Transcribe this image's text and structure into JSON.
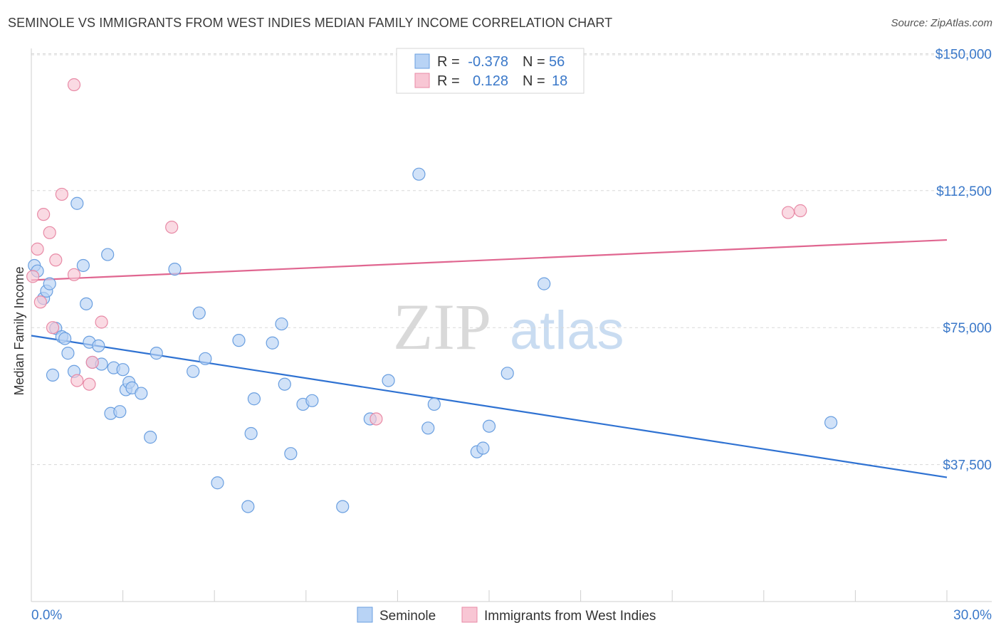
{
  "title": "SEMINOLE VS IMMIGRANTS FROM WEST INDIES MEDIAN FAMILY INCOME CORRELATION CHART",
  "source": "Source: ZipAtlas.com",
  "watermark": {
    "zip": "ZIP",
    "atlas": "atlas"
  },
  "colors": {
    "seminole_fill": "#b8d3f5",
    "seminole_stroke": "#6a9fe0",
    "seminole_line": "#2f72d2",
    "west_indies_fill": "#f8c6d4",
    "west_indies_stroke": "#e88aa6",
    "west_indies_line": "#e06690",
    "tick_blue": "#3a78c9",
    "grid": "#d8d8d8"
  },
  "legend": {
    "row1": {
      "r_label": "R =",
      "r_value": "-0.378",
      "n_label": "N =",
      "n_value": "56"
    },
    "row2": {
      "r_label": "R =",
      "r_value": "0.128",
      "n_label": "N =",
      "n_value": "18"
    }
  },
  "bottom_legend": [
    "Seminole",
    "Immigrants from West Indies"
  ],
  "chart_data": {
    "type": "scatter",
    "title": "SEMINOLE VS IMMIGRANTS FROM WEST INDIES MEDIAN FAMILY INCOME CORRELATION CHART",
    "xlabel": "",
    "ylabel": "Median Family Income",
    "xlim": [
      0,
      30
    ],
    "ylim": [
      0,
      153000
    ],
    "x_tick_labels": [
      "0.0%",
      "30.0%"
    ],
    "y_ticks": [
      37500,
      75000,
      112500,
      150000
    ],
    "y_tick_labels": [
      "$37,500",
      "$75,000",
      "$112,500",
      "$150,000"
    ],
    "grid": "horizontal dashed",
    "legend_position": "top-center",
    "series": [
      {
        "name": "Seminole",
        "color": "#6a9fe0",
        "trend": {
          "x": [
            0,
            30
          ],
          "y": [
            72800,
            34000
          ]
        },
        "points": [
          [
            0.1,
            92000
          ],
          [
            0.2,
            90500
          ],
          [
            0.4,
            83000
          ],
          [
            0.5,
            85000
          ],
          [
            0.6,
            87000
          ],
          [
            0.7,
            62000
          ],
          [
            0.8,
            74800
          ],
          [
            1.0,
            72500
          ],
          [
            1.1,
            72000
          ],
          [
            1.2,
            68000
          ],
          [
            1.4,
            63000
          ],
          [
            1.5,
            109000
          ],
          [
            1.7,
            92000
          ],
          [
            1.8,
            81500
          ],
          [
            1.9,
            71000
          ],
          [
            2.0,
            65500
          ],
          [
            2.2,
            70000
          ],
          [
            2.3,
            65000
          ],
          [
            2.5,
            95000
          ],
          [
            2.6,
            51500
          ],
          [
            2.7,
            64000
          ],
          [
            2.9,
            52000
          ],
          [
            3.0,
            63500
          ],
          [
            3.1,
            58000
          ],
          [
            3.2,
            60000
          ],
          [
            3.3,
            58500
          ],
          [
            3.6,
            57000
          ],
          [
            3.9,
            45000
          ],
          [
            4.1,
            68000
          ],
          [
            4.7,
            91000
          ],
          [
            5.3,
            63000
          ],
          [
            5.5,
            79000
          ],
          [
            5.7,
            66500
          ],
          [
            6.1,
            32500
          ],
          [
            6.8,
            71500
          ],
          [
            7.1,
            26000
          ],
          [
            7.2,
            46000
          ],
          [
            7.3,
            55500
          ],
          [
            7.9,
            70800
          ],
          [
            8.2,
            76000
          ],
          [
            8.3,
            59500
          ],
          [
            8.5,
            40500
          ],
          [
            8.9,
            54000
          ],
          [
            9.2,
            55000
          ],
          [
            10.2,
            26000
          ],
          [
            11.1,
            50000
          ],
          [
            11.7,
            60500
          ],
          [
            12.7,
            117000
          ],
          [
            13.0,
            47500
          ],
          [
            13.2,
            54000
          ],
          [
            14.6,
            41000
          ],
          [
            14.8,
            42000
          ],
          [
            15.0,
            48000
          ],
          [
            15.6,
            62500
          ],
          [
            16.8,
            87000
          ],
          [
            26.2,
            49000
          ]
        ]
      },
      {
        "name": "Immigrants from West Indies",
        "color": "#e88aa6",
        "trend": {
          "x": [
            0,
            30
          ],
          "y": [
            88000,
            99000
          ]
        },
        "points": [
          [
            0.05,
            89000
          ],
          [
            0.2,
            96500
          ],
          [
            0.3,
            82000
          ],
          [
            0.4,
            106000
          ],
          [
            0.6,
            101000
          ],
          [
            0.7,
            75000
          ],
          [
            0.8,
            93500
          ],
          [
            1.0,
            111500
          ],
          [
            1.4,
            89500
          ],
          [
            1.4,
            141500
          ],
          [
            1.5,
            60500
          ],
          [
            1.9,
            59500
          ],
          [
            2.0,
            65500
          ],
          [
            2.3,
            76500
          ],
          [
            4.6,
            102500
          ],
          [
            11.3,
            50000
          ],
          [
            24.8,
            106500
          ],
          [
            25.2,
            107000
          ]
        ]
      }
    ]
  }
}
